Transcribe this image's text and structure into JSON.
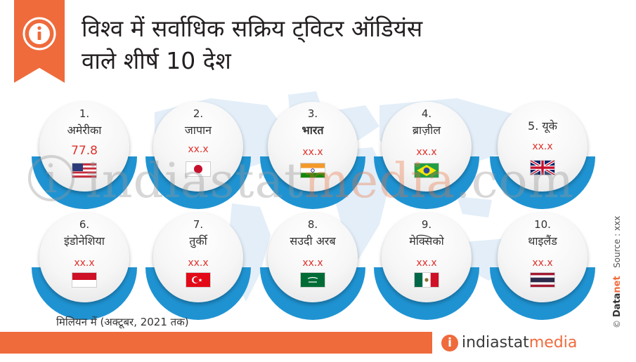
{
  "title": {
    "line1": "विश्व में सर्वाधिक सक्रिय ट्विटर ऑडियंस",
    "line2": "वाले शीर्ष 10 देश"
  },
  "icons": {
    "badge": "info-icon",
    "background": "world-map-icon"
  },
  "colors": {
    "accent_orange": "#ef6b3c",
    "arc_blue": "#1f93d2",
    "value_red": "#e0322c"
  },
  "countries": [
    {
      "rank": "1.",
      "name": "अमेरीका",
      "value": "77.8",
      "flag": "us-flag-icon"
    },
    {
      "rank": "2.",
      "name": "जापान",
      "value": "xx.x",
      "flag": "japan-flag-icon"
    },
    {
      "rank": "3.",
      "name": "भारत",
      "value": "xx.x",
      "flag": "india-flag-icon"
    },
    {
      "rank": "4.",
      "name": "ब्राज़ील",
      "value": "xx.x",
      "flag": "brazil-flag-icon"
    },
    {
      "rank": "5.",
      "name": "यूके",
      "value": "xx.x",
      "flag": "uk-flag-icon"
    },
    {
      "rank": "6.",
      "name": "इंडोनेशिया",
      "value": "xx.x",
      "flag": "indonesia-flag-icon"
    },
    {
      "rank": "7.",
      "name": "तुर्की",
      "value": "xx.x",
      "flag": "turkey-flag-icon"
    },
    {
      "rank": "8.",
      "name": "सउदी अरब",
      "value": "xx.x",
      "flag": "saudi-arabia-flag-icon"
    },
    {
      "rank": "9.",
      "name": "मेक्सिको",
      "value": "xx.x",
      "flag": "mexico-flag-icon"
    },
    {
      "rank": "10.",
      "name": "थाइलैंड",
      "value": "xx.x",
      "flag": "thailand-flag-icon"
    }
  ],
  "footnote": "मिलियन में (अक्टूबर, 2021 तक)",
  "watermark": {
    "part1": "indiastat",
    "part2": "media",
    "part3": ".com"
  },
  "logo": {
    "icon_letter": "i",
    "part1": "indiastat",
    "part2": "media"
  },
  "source": {
    "copyright": "©",
    "brand1": "Data",
    "brand2": "net",
    "label": "Source : xxx"
  }
}
